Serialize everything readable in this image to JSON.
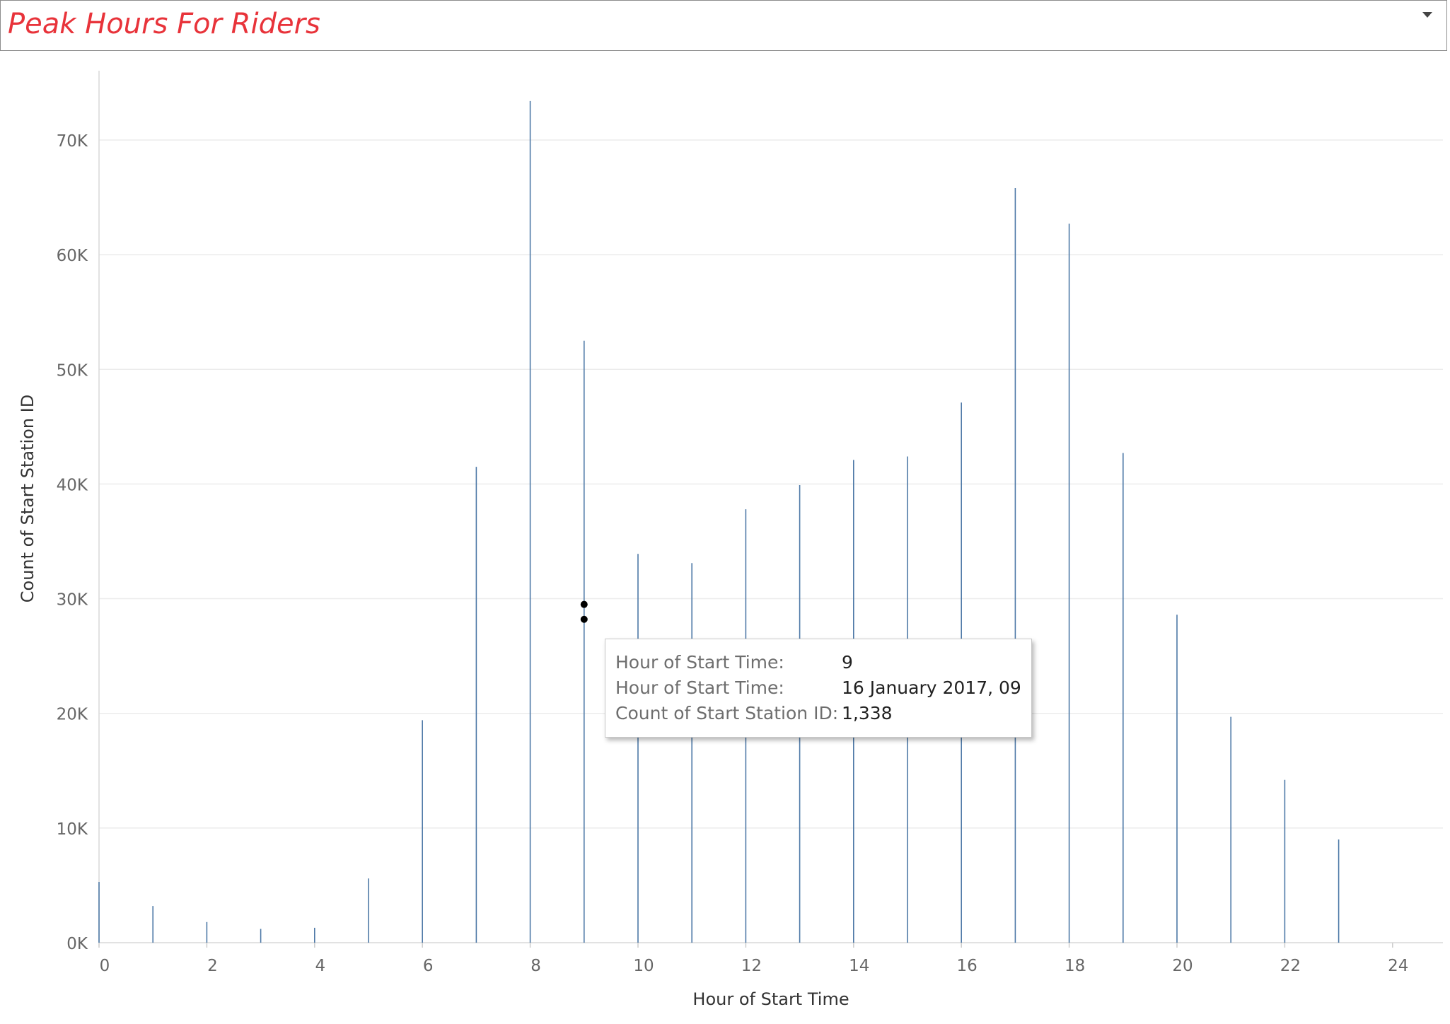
{
  "header": {
    "title": "Peak Hours For Riders",
    "title_color": "#e8333a",
    "menu_icon": "chevron-down-icon"
  },
  "chart_data": {
    "type": "bar",
    "xlabel": "Hour of Start Time",
    "ylabel": "Count of Start Station ID",
    "x": [
      0,
      1,
      2,
      3,
      4,
      5,
      6,
      7,
      8,
      9,
      10,
      11,
      12,
      13,
      14,
      15,
      16,
      17,
      18,
      19,
      20,
      21,
      22,
      23
    ],
    "values": [
      5300,
      3200,
      1800,
      1200,
      1300,
      5600,
      19400,
      41500,
      73400,
      52500,
      33900,
      33100,
      37800,
      39900,
      42100,
      42400,
      47100,
      65800,
      62700,
      42700,
      28600,
      19700,
      14200,
      9000
    ],
    "x_ticks": [
      "0",
      "2",
      "4",
      "6",
      "8",
      "10",
      "12",
      "14",
      "16",
      "18",
      "20",
      "22",
      "24"
    ],
    "y_ticks": [
      "0K",
      "10K",
      "20K",
      "30K",
      "40K",
      "50K",
      "60K",
      "70K"
    ],
    "xlim": [
      0,
      24
    ],
    "ylim": [
      0,
      75000
    ],
    "grid": true,
    "bar_color": "#4e79a7",
    "highlight_points": [
      {
        "x": 9,
        "y": 29500
      },
      {
        "x": 9,
        "y": 28200
      }
    ]
  },
  "tooltip": {
    "rows": [
      {
        "label": "Hour of Start Time:",
        "value": "9"
      },
      {
        "label": "Hour of Start Time:",
        "value": "16 January 2017, 09"
      },
      {
        "label": "Count of Start Station ID:",
        "value": "1,338"
      }
    ]
  }
}
